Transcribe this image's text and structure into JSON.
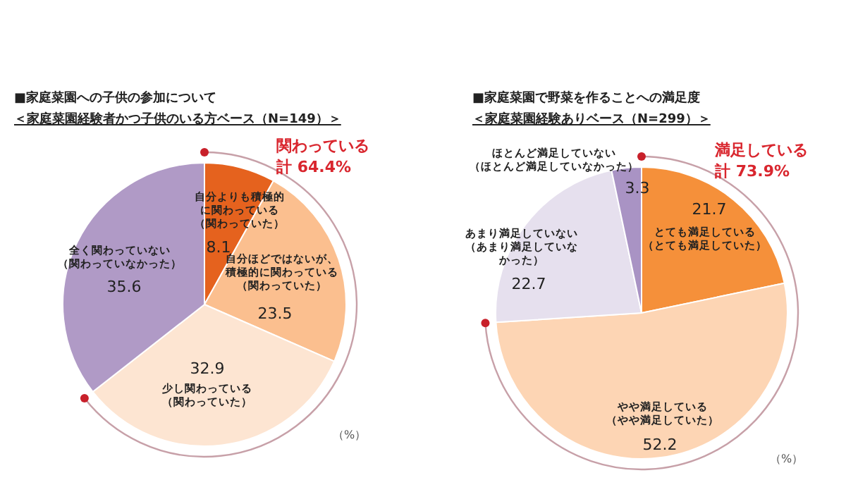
{
  "chart_data": [
    {
      "type": "pie",
      "title": "■家庭菜園への子供の参加について",
      "subtitle": "＜家庭菜園経験者かつ子供のいる方ベース（N=149）＞",
      "categories": [
        "自分よりも積極的に関わっている（関わっていた）",
        "自分ほどではないが、積極的に関わっている（関わっていた）",
        "少し関わっている（関わっていた）",
        "全く関わっていない（関わっていなかった）"
      ],
      "values": [
        8.1,
        23.5,
        32.9,
        35.6
      ],
      "colors": [
        "#e5621e",
        "#fbbf8f",
        "#fde5d2",
        "#b09ac6"
      ],
      "data_labels": true,
      "annotations": [
        "関わっている計 64.4%",
        "（%）"
      ]
    },
    {
      "type": "pie",
      "title": "■家庭菜園で野菜を作ることへの満足度",
      "subtitle": "＜家庭菜園経験ありベース（N=299）＞",
      "categories": [
        "とても満足している（とても満足していた）",
        "やや満足している（やや満足していた）",
        "あまり満足していない（あまり満足していなかった）",
        "ほとんど満足していない（ほとんど満足していなかった）"
      ],
      "values": [
        21.7,
        52.2,
        22.7,
        3.3
      ],
      "colors": [
        "#f5903a",
        "#fdd5b4",
        "#e6e0ee",
        "#a993c4"
      ],
      "data_labels": true,
      "annotations": [
        "満足している計 73.9%",
        "（%）"
      ]
    }
  ]
}
